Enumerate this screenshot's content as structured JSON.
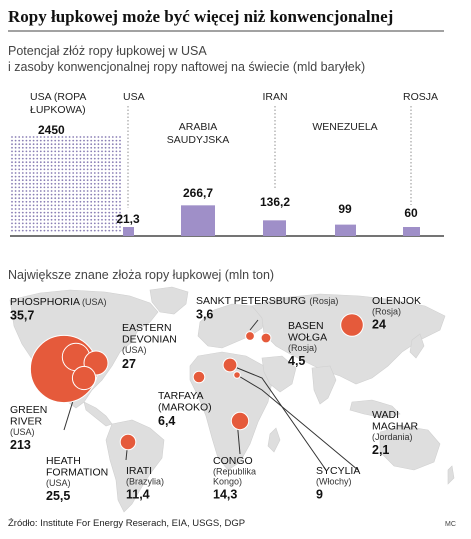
{
  "title": "Ropy łupkowej może być więcej niż konwencjonalnej",
  "source": "Źródło: Institute For Energy Reserach, EIA, USGS, DGP",
  "credit": "MC",
  "colors": {
    "bar": "#9f8fc8",
    "dots": "#8a7fb5",
    "bubble": "#e55a3b",
    "map": "#dedede",
    "title_rule": "#444444"
  },
  "chart_data": [
    {
      "type": "bar",
      "title": "Potencjał złóż ropy łupkowej w USA",
      "subtitle": "i zasoby konwencjonalnej ropy naftowej na świecie (mld baryłek)",
      "categories": [
        "USA (ROPA ŁUPKOWA)",
        "USA",
        "ARABIA SAUDYJSKA",
        "IRAN",
        "WENEZUELA",
        "ROSJA"
      ],
      "category_lines": [
        [
          "USA (ROPA",
          "ŁUPKOWA)"
        ],
        [
          "USA"
        ],
        [
          "ARABIA",
          "SAUDYJSKA"
        ],
        [
          "IRAN"
        ],
        [
          "WENEZUELA"
        ],
        [
          "ROSJA"
        ]
      ],
      "values": [
        2450,
        21.3,
        266.7,
        136.2,
        99,
        60
      ],
      "value_labels": [
        "2450",
        "21,3",
        "266,7",
        "136,2",
        "99",
        "60"
      ],
      "broken_axis": true,
      "grid": false
    },
    {
      "type": "scatter",
      "subtitle": "Największe znane złoża ropy łupkowej (mln ton)",
      "points": [
        {
          "name": "GREEN RIVER",
          "lines": [
            "GREEN",
            "RIVER"
          ],
          "region": "(USA)",
          "value": 213,
          "value_label": "213"
        },
        {
          "name": "PHOSPHORIA",
          "lines": [
            "PHOSPHORIA"
          ],
          "region": "(USA)",
          "value": 35.7,
          "value_label": "35,7"
        },
        {
          "name": "EASTERN DEVONIAN",
          "lines": [
            "EASTERN",
            "DEVONIAN"
          ],
          "region": "(USA)",
          "value": 27,
          "value_label": "27"
        },
        {
          "name": "HEATH FORMATION",
          "lines": [
            "HEATH",
            "FORMATION"
          ],
          "region": "(USA)",
          "value": 25.5,
          "value_label": "25,5"
        },
        {
          "name": "IRATI",
          "lines": [
            "IRATI"
          ],
          "region": "(Brazylia)",
          "value": 11.4,
          "value_label": "11,4"
        },
        {
          "name": "TARFAYA",
          "lines": [
            "TARFAYA",
            "(MAROKO)"
          ],
          "region": "",
          "value": 6.4,
          "value_label": "6,4"
        },
        {
          "name": "SANKT PETERSBURG",
          "lines": [
            "SANKT PETERSBURG"
          ],
          "region": "(Rosja)",
          "value": 3.6,
          "value_label": "3,6"
        },
        {
          "name": "BASEN WOŁGA",
          "lines": [
            "BASEN",
            "WOŁGA"
          ],
          "region": "(Rosja)",
          "value": 4.5,
          "value_label": "4,5"
        },
        {
          "name": "OLENJOK",
          "lines": [
            "OLENJOK"
          ],
          "region": "(Rosja)",
          "value": 24,
          "value_label": "24"
        },
        {
          "name": "CONGO",
          "lines": [
            "CONGO"
          ],
          "region": "(Republika Kongo)",
          "region_lines": [
            "(Republika",
            "Kongo)"
          ],
          "value": 14.3,
          "value_label": "14,3"
        },
        {
          "name": "SYCYLIA",
          "lines": [
            "SYCYLIA"
          ],
          "region": "(Włochy)",
          "value": 9,
          "value_label": "9"
        },
        {
          "name": "WADI MAGHAR",
          "lines": [
            "WADI",
            "MAGHAR"
          ],
          "region": "(Jordania)",
          "value": 2.1,
          "value_label": "2,1"
        }
      ]
    }
  ]
}
